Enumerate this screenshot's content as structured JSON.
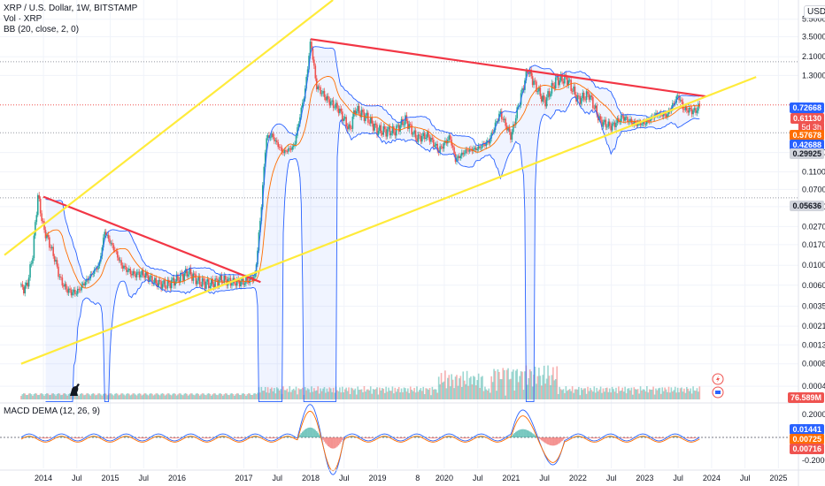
{
  "header": {
    "symbol": "XRP / U.S. Dollar, 1W, BITSTAMP",
    "vol_label": "Vol · XRP",
    "bb_label": "BB (20, close, 2, 0)",
    "macd_label": "MACD DEMA (12, 26, 9)",
    "currency": "USD"
  },
  "price_axis": {
    "ticks": [
      "5.50000",
      "3.50000",
      "2.10000",
      "1.30000",
      "0.18000",
      "0.11000",
      "0.07000",
      "0.04500",
      "0.02700",
      "0.01700",
      "0.01000",
      "0.00600",
      "0.00350",
      "0.00210",
      "0.00130",
      "0.00080",
      "0.00045"
    ]
  },
  "time_axis": {
    "ticks": [
      "2014",
      "Jul",
      "2015",
      "Jul",
      "2016",
      "2017",
      "Jul",
      "2018",
      "Jul",
      "2019",
      "8",
      "2020",
      "Jul",
      "2021",
      "Jul",
      "2022",
      "Jul",
      "2023",
      "Jul",
      "2024",
      "Jul",
      "2025"
    ]
  },
  "macd_axis": {
    "ticks": [
      "0.20000",
      "-0.20000"
    ]
  },
  "price_labels": {
    "bb_upper": "0.72668",
    "last": "0.61130",
    "countdown": "5d 3h",
    "bb_basis": "0.57678",
    "bb_lower": "0.42688",
    "prev_high": "0.29925",
    "low_line": "0.05636",
    "volume": "76.589M",
    "macd_a": "0.01441",
    "macd_b": "0.00725",
    "macd_hist": "0.00716"
  },
  "colors": {
    "up": "#26a69a",
    "down": "#ef5350",
    "bb_band": "#2962ff",
    "basis": "#ff6d00",
    "red_trendline": "#f23645",
    "yellow_trendline": "#ffeb3b"
  },
  "chart_data": {
    "type": "candlestick",
    "title": "XRP / U.S. Dollar, 1W, BITSTAMP",
    "y_scale": "log",
    "ylim": [
      0.0003,
      9.0
    ],
    "grid": true,
    "close_path": [
      [
        "2013-09",
        0.0055
      ],
      [
        "2013-10",
        0.0058
      ],
      [
        "2013-11",
        0.012
      ],
      [
        "2013-12",
        0.06
      ],
      [
        "2014-01",
        0.026
      ],
      [
        "2014-02",
        0.018
      ],
      [
        "2014-03",
        0.012
      ],
      [
        "2014-04",
        0.007
      ],
      [
        "2014-05",
        0.0055
      ],
      [
        "2014-06",
        0.005
      ],
      [
        "2014-07",
        0.005
      ],
      [
        "2014-08",
        0.006
      ],
      [
        "2014-09",
        0.007
      ],
      [
        "2014-10",
        0.0085
      ],
      [
        "2014-11",
        0.01
      ],
      [
        "2014-12",
        0.024
      ],
      [
        "2015-01",
        0.018
      ],
      [
        "2015-02",
        0.014
      ],
      [
        "2015-03",
        0.01
      ],
      [
        "2015-05",
        0.008
      ],
      [
        "2015-07",
        0.008
      ],
      [
        "2015-09",
        0.0065
      ],
      [
        "2015-11",
        0.006
      ],
      [
        "2016-01",
        0.007
      ],
      [
        "2016-03",
        0.0085
      ],
      [
        "2016-05",
        0.0065
      ],
      [
        "2016-07",
        0.0062
      ],
      [
        "2016-09",
        0.007
      ],
      [
        "2016-11",
        0.0065
      ],
      [
        "2017-01",
        0.0065
      ],
      [
        "2017-03",
        0.0075
      ],
      [
        "2017-04",
        0.035
      ],
      [
        "2017-05",
        0.26
      ],
      [
        "2017-06",
        0.28
      ],
      [
        "2017-08",
        0.18
      ],
      [
        "2017-10",
        0.21
      ],
      [
        "2017-12",
        0.9
      ],
      [
        "2018-01",
        3.2
      ],
      [
        "2018-02",
        1.0
      ],
      [
        "2018-04",
        0.7
      ],
      [
        "2018-06",
        0.55
      ],
      [
        "2018-08",
        0.32
      ],
      [
        "2018-09",
        0.55
      ],
      [
        "2018-11",
        0.45
      ],
      [
        "2019-01",
        0.32
      ],
      [
        "2019-04",
        0.31
      ],
      [
        "2019-06",
        0.42
      ],
      [
        "2019-08",
        0.26
      ],
      [
        "2019-10",
        0.28
      ],
      [
        "2019-12",
        0.19
      ],
      [
        "2020-02",
        0.27
      ],
      [
        "2020-03",
        0.15
      ],
      [
        "2020-05",
        0.19
      ],
      [
        "2020-07",
        0.2
      ],
      [
        "2020-09",
        0.24
      ],
      [
        "2020-11",
        0.5
      ],
      [
        "2021-01",
        0.27
      ],
      [
        "2021-02",
        0.5
      ],
      [
        "2021-04",
        1.55
      ],
      [
        "2021-05",
        1.1
      ],
      [
        "2021-07",
        0.65
      ],
      [
        "2021-09",
        1.15
      ],
      [
        "2021-11",
        1.2
      ],
      [
        "2022-01",
        0.7
      ],
      [
        "2022-03",
        0.8
      ],
      [
        "2022-05",
        0.4
      ],
      [
        "2022-07",
        0.35
      ],
      [
        "2022-09",
        0.45
      ],
      [
        "2022-11",
        0.38
      ],
      [
        "2023-01",
        0.38
      ],
      [
        "2023-03",
        0.48
      ],
      [
        "2023-05",
        0.47
      ],
      [
        "2023-07",
        0.78
      ],
      [
        "2023-08",
        0.55
      ],
      [
        "2023-10",
        0.52
      ],
      [
        "2023-11",
        0.61
      ]
    ],
    "bollinger_bands": {
      "period": 20,
      "stddev": 2,
      "upper_last": 0.72668,
      "basis_last": 0.57678,
      "lower_last": 0.42688
    },
    "trendlines": [
      {
        "color": "red",
        "from": [
          "2014-01",
          0.058
        ],
        "to": [
          "2017-04",
          0.0065
        ]
      },
      {
        "color": "red",
        "from": [
          "2018-01",
          3.3
        ],
        "to": [
          "2023-12",
          0.76
        ]
      },
      {
        "color": "yellow",
        "from": [
          "2013-06",
          0.013
        ],
        "to": [
          "2018-05",
          9.0
        ]
      },
      {
        "color": "yellow",
        "from": [
          "2013-09",
          0.0008
        ],
        "to": [
          "2024-09",
          1.25
        ]
      }
    ],
    "horizontal_levels": [
      0.05636,
      1.85,
      0.29925
    ],
    "last_price": 0.6113,
    "volume_last": "76.589M",
    "macd": {
      "params": "12, 26, 9",
      "macd_last": 0.01441,
      "signal_last": 0.00725,
      "hist_last": 0.00716
    }
  }
}
